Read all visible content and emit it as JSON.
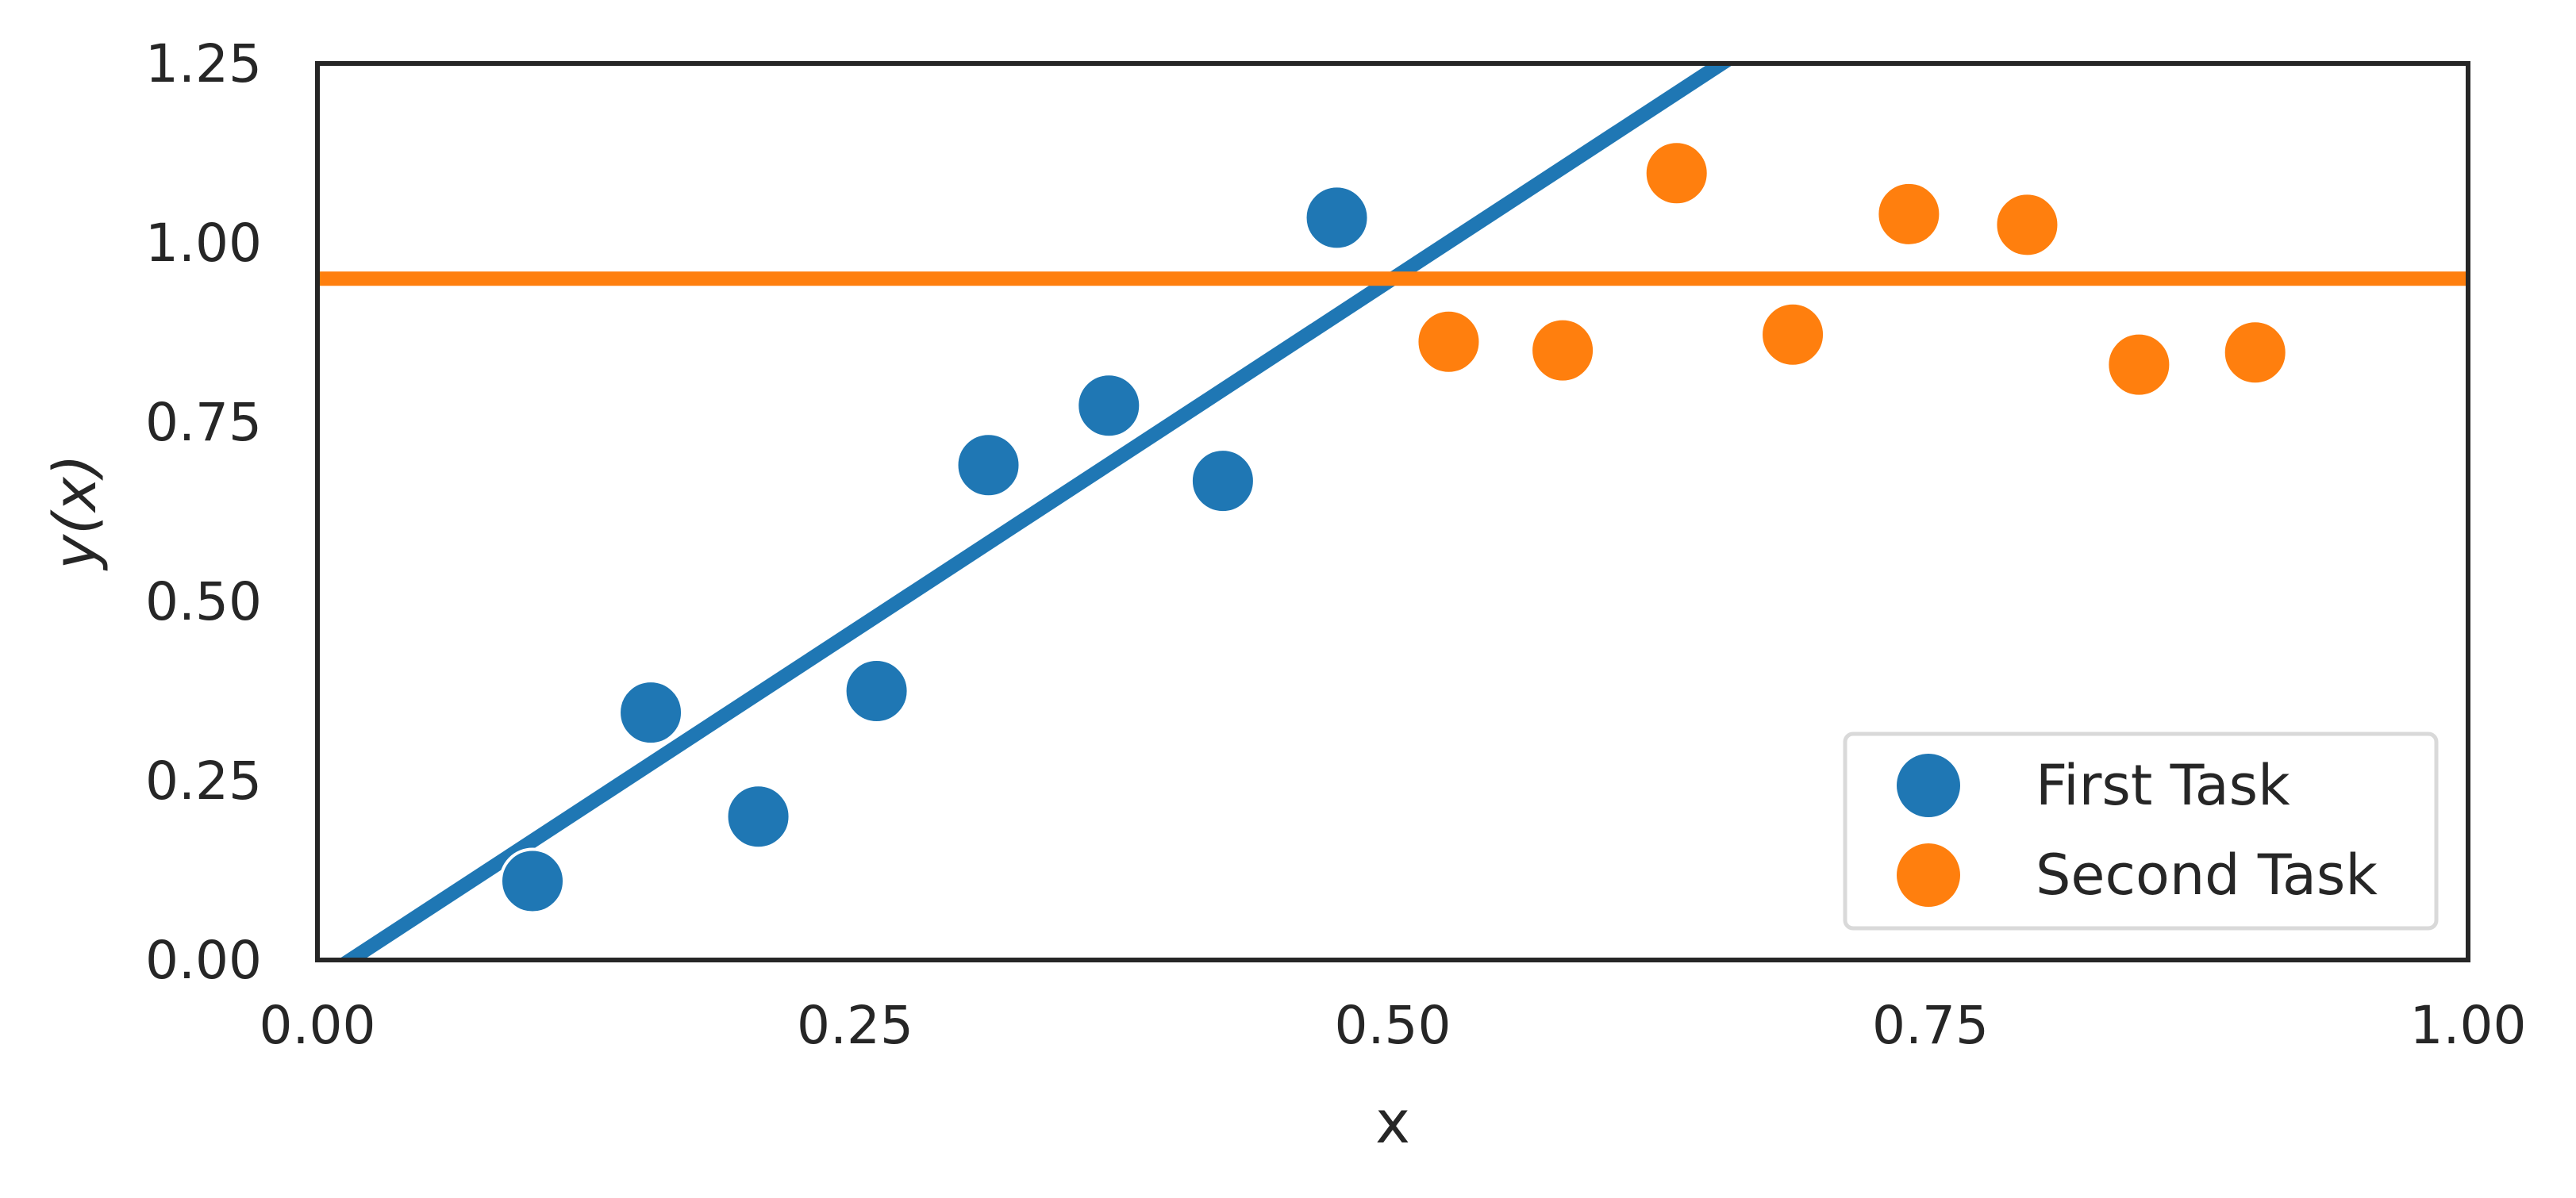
{
  "chart_data": {
    "type": "scatter",
    "xlabel": "x",
    "ylabel": "y(x)",
    "xlim": [
      0.0,
      1.0
    ],
    "ylim": [
      0.0,
      1.25
    ],
    "x_ticks": [
      "0.00",
      "0.25",
      "0.50",
      "0.75",
      "1.00"
    ],
    "y_ticks": [
      "0.00",
      "0.25",
      "0.50",
      "0.75",
      "1.00",
      "1.25"
    ],
    "grid": false,
    "legend_position": "bottom-right",
    "series": [
      {
        "name": "First Task",
        "color": "#1f77b4",
        "points": [
          {
            "x": 0.1,
            "y": 0.11
          },
          {
            "x": 0.155,
            "y": 0.345
          },
          {
            "x": 0.205,
            "y": 0.2
          },
          {
            "x": 0.26,
            "y": 0.375
          },
          {
            "x": 0.312,
            "y": 0.69
          },
          {
            "x": 0.368,
            "y": 0.773
          },
          {
            "x": 0.421,
            "y": 0.668
          },
          {
            "x": 0.474,
            "y": 1.035
          }
        ],
        "fit_line": {
          "slope": 1.96,
          "intercept": -0.03
        }
      },
      {
        "name": "Second Task",
        "color": "#ff7f0e",
        "points": [
          {
            "x": 0.526,
            "y": 0.862
          },
          {
            "x": 0.579,
            "y": 0.85
          },
          {
            "x": 0.632,
            "y": 1.097
          },
          {
            "x": 0.686,
            "y": 0.872
          },
          {
            "x": 0.74,
            "y": 1.04
          },
          {
            "x": 0.795,
            "y": 1.025
          },
          {
            "x": 0.847,
            "y": 0.83
          },
          {
            "x": 0.901,
            "y": 0.847
          }
        ],
        "fit_line": {
          "slope": 0.0,
          "intercept": 0.95
        }
      }
    ]
  }
}
